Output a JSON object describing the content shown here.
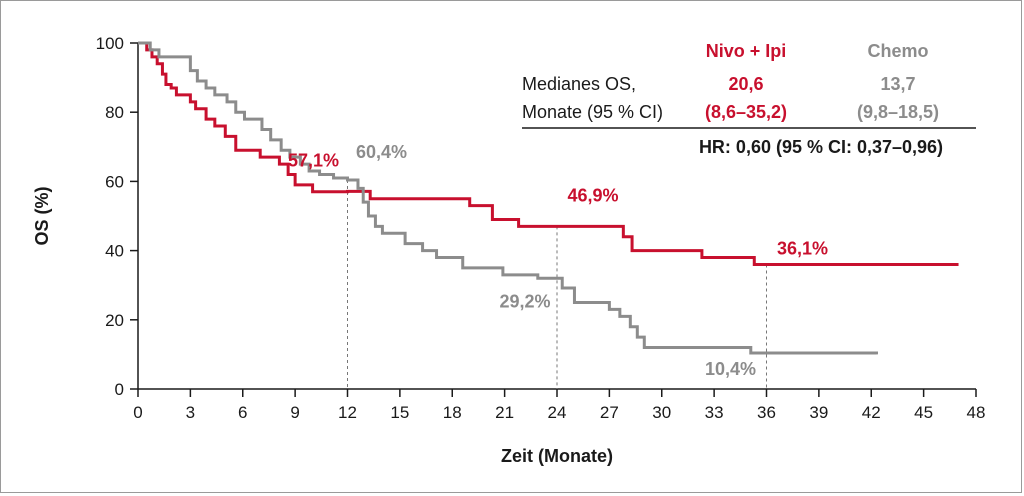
{
  "chart_data": {
    "type": "line",
    "xlabel": "Zeit (Monate)",
    "ylabel": "OS (%)",
    "xlim": [
      0,
      48
    ],
    "ylim": [
      0,
      100
    ],
    "xticks": [
      0,
      3,
      6,
      9,
      12,
      15,
      18,
      21,
      24,
      27,
      30,
      33,
      36,
      39,
      42,
      45,
      48
    ],
    "yticks": [
      0,
      20,
      40,
      60,
      80,
      100
    ],
    "grid": false,
    "series": [
      {
        "name": "Nivo + Ipi",
        "color": "#c8102e",
        "x": [
          0,
          0.5,
          0.8,
          1.1,
          1.4,
          1.6,
          1.9,
          2.2,
          3.0,
          3.3,
          3.9,
          4.4,
          5.0,
          5.6,
          7.0,
          8.1,
          8.6,
          9.0,
          10.0,
          12.0,
          13.3,
          18.5,
          19.0,
          20.3,
          21.8,
          27.8,
          28.3,
          32.3,
          35.3,
          47.0
        ],
        "y": [
          100,
          98,
          96,
          94,
          91,
          88,
          87,
          85,
          83,
          81,
          78,
          76,
          73,
          69,
          67,
          65,
          62,
          59,
          57,
          57.1,
          55,
          55,
          53,
          49,
          47,
          44,
          40,
          38,
          36,
          36
        ]
      },
      {
        "name": "Chemo",
        "color": "#8c8c8c",
        "x": [
          0,
          0.7,
          1.2,
          3.0,
          3.4,
          3.9,
          4.4,
          5.1,
          5.6,
          6.1,
          7.1,
          7.6,
          8.2,
          8.7,
          9.3,
          9.8,
          10.4,
          11.2,
          12.0,
          12.6,
          12.9,
          13.2,
          13.6,
          14.0,
          15.3,
          16.3,
          17.1,
          18.6,
          20.9,
          22.9,
          24.3,
          25.0,
          27.0,
          27.6,
          28.2,
          28.6,
          29.0,
          33.1,
          35.1,
          42.3
        ],
        "y": [
          100,
          98,
          96,
          92,
          89,
          87,
          85,
          83,
          80,
          78,
          75,
          72,
          69,
          67,
          65,
          63,
          62,
          61,
          60.4,
          58,
          54,
          50,
          47,
          45,
          42,
          40,
          38,
          35,
          33,
          32,
          29.2,
          25,
          23,
          21,
          18,
          15,
          12,
          12,
          10.4,
          10
        ]
      }
    ],
    "annotations": [
      {
        "text": "57,1%",
        "series": 0,
        "x": 12
      },
      {
        "text": "46,9%",
        "series": 0,
        "x": 24
      },
      {
        "text": "36,1%",
        "series": 0,
        "x": 36
      },
      {
        "text": "60,4%",
        "series": 1,
        "x": 12
      },
      {
        "text": "29,2%",
        "series": 1,
        "x": 24
      },
      {
        "text": "10,4%",
        "series": 1,
        "x": 36
      }
    ],
    "legend": {
      "placement": "top-right",
      "header_nivo": "Nivo + Ipi",
      "header_chemo": "Chemo",
      "row_label_1": "Medianes OS,",
      "row_label_2": "Monate (95 % CI)",
      "nivo_median": "20,6",
      "nivo_ci": "(8,6–35,2)",
      "chemo_median": "13,7",
      "chemo_ci": "(9,8–18,5)",
      "hr": "HR: 0,60 (95 % CI: 0,37–0,96)"
    }
  }
}
